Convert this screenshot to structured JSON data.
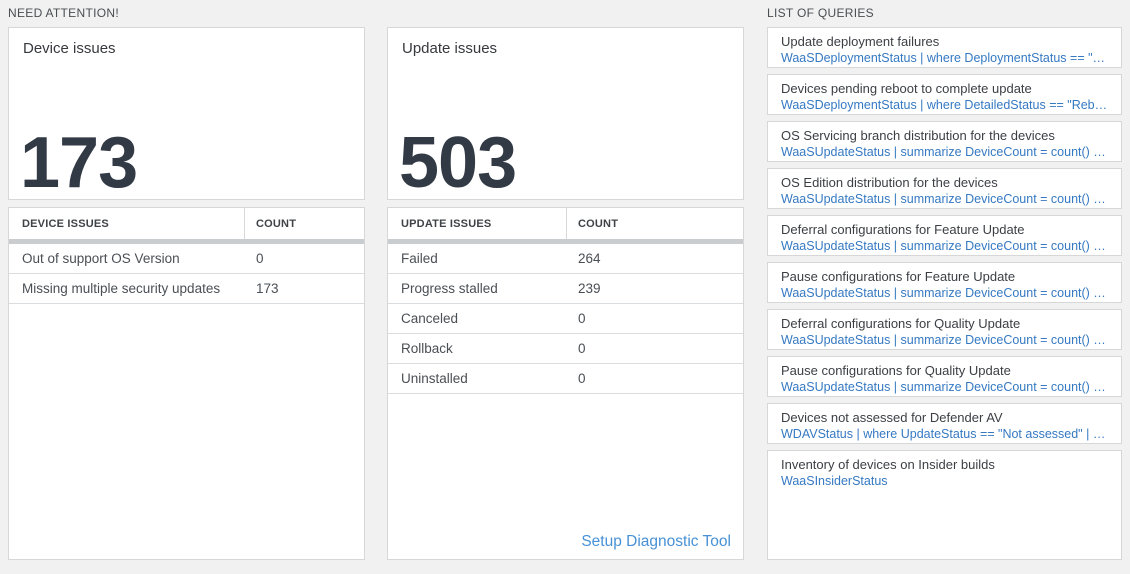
{
  "colors": {
    "page_background": "#f1f1f2",
    "card_border": "#d7d7d7",
    "big_number_dark": "#323a45",
    "query_blue": "#3579c2",
    "link_blue": "#4791d6",
    "table_bar_gray": "#c9cdd0"
  },
  "need_attention": {
    "section_title": "NEED ATTENTION!",
    "device": {
      "card_title": "Device issues",
      "big_number": "173",
      "table": {
        "headers": [
          "DEVICE ISSUES",
          "COUNT"
        ],
        "rows": [
          {
            "label": "Out of support OS Version",
            "count": "0"
          },
          {
            "label": "Missing multiple security updates",
            "count": "173"
          }
        ]
      }
    },
    "update": {
      "card_title": "Update issues",
      "big_number": "503",
      "table": {
        "headers": [
          "UPDATE ISSUES",
          "COUNT"
        ],
        "rows": [
          {
            "label": "Failed",
            "count": "264"
          },
          {
            "label": "Progress stalled",
            "count": "239"
          },
          {
            "label": "Canceled",
            "count": "0"
          },
          {
            "label": "Rollback",
            "count": "0"
          },
          {
            "label": "Uninstalled",
            "count": "0"
          }
        ]
      },
      "link_label": "Setup Diagnostic Tool"
    }
  },
  "queries": {
    "section_title": "LIST OF QUERIES",
    "items": [
      {
        "title": "Update deployment failures",
        "query": "WaaSDeploymentStatus | where DeploymentStatus == \"Failed\" |..."
      },
      {
        "title": "Devices pending reboot to complete update",
        "query": "WaaSDeploymentStatus | where DetailedStatus == \"Reboot pend..."
      },
      {
        "title": "OS Servicing branch distribution for the devices",
        "query": "WaaSUpdateStatus | summarize DeviceCount = count() by OSSer..."
      },
      {
        "title": "OS Edition distribution for the devices",
        "query": "WaaSUpdateStatus | summarize DeviceCount = count() by OSEdit..."
      },
      {
        "title": "Deferral configurations for Feature Update",
        "query": "WaaSUpdateStatus | summarize DeviceCount = count() by Featur..."
      },
      {
        "title": "Pause configurations for Feature Update",
        "query": "WaaSUpdateStatus | summarize DeviceCount = count() by Featur..."
      },
      {
        "title": "Deferral configurations for Quality Update",
        "query": "WaaSUpdateStatus | summarize DeviceCount = count() by Qualit..."
      },
      {
        "title": "Pause configurations for Quality Update",
        "query": "WaaSUpdateStatus | summarize DeviceCount = count() by Qualit..."
      },
      {
        "title": "Devices not assessed for Defender AV",
        "query": "WDAVStatus | where UpdateStatus == \"Not assessed\" | render ta..."
      },
      {
        "title": "Inventory of devices on Insider builds",
        "query": "WaaSInsiderStatus"
      }
    ]
  }
}
